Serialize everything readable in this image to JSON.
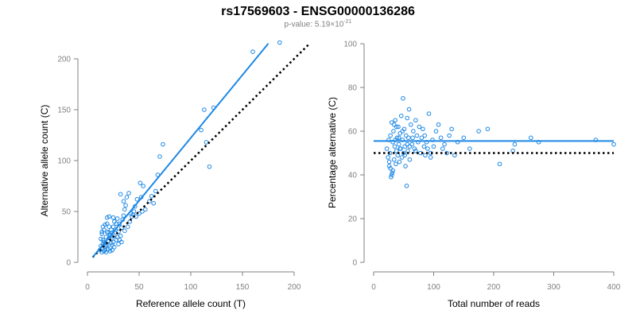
{
  "title": "rs17569603 - ENSG00000136286",
  "subtitle_prefix": "p-value: 5.19×10",
  "subtitle_exp": "-21",
  "colors": {
    "accent": "#1e88e5",
    "axis": "#808080",
    "reference": "#000000"
  },
  "chart_data": [
    {
      "type": "scatter",
      "xlabel": "Reference allele count (T)",
      "ylabel": "Alternative allele count (C)",
      "xlim": [
        0,
        200
      ],
      "ylim": [
        0,
        200
      ],
      "xticks": [
        0,
        50,
        100,
        150,
        200
      ],
      "yticks": [
        0,
        50,
        100,
        150,
        200
      ],
      "fit_line": {
        "x": [
          5,
          175
        ],
        "y": [
          5,
          215
        ]
      },
      "reference_line": {
        "x": [
          5,
          215
        ],
        "y": [
          5,
          215
        ]
      },
      "points": [
        [
          12,
          12
        ],
        [
          13,
          16
        ],
        [
          14,
          10
        ],
        [
          15,
          18
        ],
        [
          16,
          20
        ],
        [
          15,
          22
        ],
        [
          17,
          14
        ],
        [
          18,
          25
        ],
        [
          14,
          28
        ],
        [
          19,
          30
        ],
        [
          16,
          32
        ],
        [
          15,
          35
        ],
        [
          17,
          12
        ],
        [
          19,
          18
        ],
        [
          20,
          21
        ],
        [
          18,
          16
        ],
        [
          21,
          24
        ],
        [
          22,
          27
        ],
        [
          20,
          29
        ],
        [
          23,
          32
        ],
        [
          21,
          35
        ],
        [
          19,
          38
        ],
        [
          22,
          14
        ],
        [
          24,
          17
        ],
        [
          25,
          20
        ],
        [
          23,
          23
        ],
        [
          26,
          26
        ],
        [
          24,
          29
        ],
        [
          27,
          32
        ],
        [
          25,
          35
        ],
        [
          28,
          38
        ],
        [
          26,
          40
        ],
        [
          29,
          43
        ],
        [
          30,
          18
        ],
        [
          31,
          22
        ],
        [
          32,
          26
        ],
        [
          30,
          30
        ],
        [
          33,
          34
        ],
        [
          31,
          38
        ],
        [
          34,
          42
        ],
        [
          35,
          46
        ],
        [
          36,
          52
        ],
        [
          37,
          56
        ],
        [
          35,
          60
        ],
        [
          38,
          64
        ],
        [
          40,
          68
        ],
        [
          32,
          67
        ],
        [
          42,
          48
        ],
        [
          44,
          47
        ],
        [
          45,
          50
        ],
        [
          47,
          45
        ],
        [
          48,
          62
        ],
        [
          50,
          48
        ],
        [
          52,
          64
        ],
        [
          51,
          78
        ],
        [
          54,
          75
        ],
        [
          62,
          65
        ],
        [
          66,
          70
        ],
        [
          68,
          86
        ],
        [
          70,
          104
        ],
        [
          73,
          116
        ],
        [
          110,
          130
        ],
        [
          113,
          150
        ],
        [
          115,
          118
        ],
        [
          118,
          94
        ],
        [
          122,
          152
        ],
        [
          160,
          207
        ],
        [
          186,
          216
        ],
        [
          21,
          45
        ],
        [
          23,
          19
        ],
        [
          25,
          44
        ],
        [
          28,
          22
        ],
        [
          18,
          10
        ],
        [
          16,
          11
        ],
        [
          20,
          13
        ],
        [
          22,
          11
        ],
        [
          13,
          23
        ],
        [
          14,
          30
        ],
        [
          17,
          37
        ],
        [
          19,
          44
        ],
        [
          24,
          12
        ],
        [
          26,
          15
        ],
        [
          29,
          25
        ],
        [
          33,
          20
        ],
        [
          36,
          31
        ],
        [
          39,
          35
        ],
        [
          41,
          40
        ],
        [
          43,
          45
        ],
        [
          46,
          55
        ],
        [
          53,
          50
        ],
        [
          56,
          52
        ],
        [
          60,
          60
        ],
        [
          64,
          58
        ]
      ]
    },
    {
      "type": "scatter",
      "xlabel": "Total number of reads",
      "ylabel": "Percentage alternative (C)",
      "xlim": [
        0,
        400
      ],
      "ylim": [
        0,
        100
      ],
      "xticks": [
        0,
        100,
        200,
        300,
        400
      ],
      "yticks": [
        0,
        20,
        40,
        60,
        80,
        100
      ],
      "fit_line": {
        "x": [
          0,
          400
        ],
        "y": [
          55.5,
          55.5
        ]
      },
      "reference_line": {
        "x": [
          0,
          400
        ],
        "y": [
          50,
          50
        ]
      },
      "points": [
        [
          22,
          52
        ],
        [
          24,
          48
        ],
        [
          25,
          56
        ],
        [
          26,
          44
        ],
        [
          27,
          50
        ],
        [
          28,
          58
        ],
        [
          29,
          39
        ],
        [
          30,
          64
        ],
        [
          31,
          41
        ],
        [
          32,
          55
        ],
        [
          33,
          60
        ],
        [
          34,
          47
        ],
        [
          35,
          53
        ],
        [
          36,
          65
        ],
        [
          37,
          45
        ],
        [
          38,
          51
        ],
        [
          39,
          57
        ],
        [
          40,
          49
        ],
        [
          41,
          62
        ],
        [
          42,
          54
        ],
        [
          43,
          46
        ],
        [
          44,
          59
        ],
        [
          45,
          52
        ],
        [
          46,
          67
        ],
        [
          47,
          48
        ],
        [
          48,
          56
        ],
        [
          49,
          75
        ],
        [
          50,
          50
        ],
        [
          51,
          61
        ],
        [
          52,
          53
        ],
        [
          53,
          44
        ],
        [
          54,
          58
        ],
        [
          55,
          35
        ],
        [
          56,
          66
        ],
        [
          57,
          51
        ],
        [
          58,
          57
        ],
        [
          59,
          70
        ],
        [
          60,
          47
        ],
        [
          62,
          63
        ],
        [
          64,
          54
        ],
        [
          66,
          60
        ],
        [
          68,
          52
        ],
        [
          70,
          65
        ],
        [
          72,
          58
        ],
        [
          74,
          55
        ],
        [
          76,
          62
        ],
        [
          78,
          50
        ],
        [
          80,
          57
        ],
        [
          82,
          61
        ],
        [
          84,
          53
        ],
        [
          86,
          49
        ],
        [
          88,
          55
        ],
        [
          90,
          52
        ],
        [
          92,
          68
        ],
        [
          95,
          48
        ],
        [
          98,
          56
        ],
        [
          100,
          53
        ],
        [
          104,
          60
        ],
        [
          108,
          63
        ],
        [
          112,
          57
        ],
        [
          118,
          54
        ],
        [
          122,
          50
        ],
        [
          126,
          58
        ],
        [
          130,
          61
        ],
        [
          135,
          49
        ],
        [
          140,
          55
        ],
        [
          150,
          57
        ],
        [
          160,
          52
        ],
        [
          175,
          60
        ],
        [
          190,
          61
        ],
        [
          210,
          45
        ],
        [
          232,
          51
        ],
        [
          235,
          54
        ],
        [
          262,
          57
        ],
        [
          275,
          55
        ],
        [
          370,
          56
        ],
        [
          400,
          54
        ],
        [
          26,
          46
        ],
        [
          28,
          43
        ],
        [
          30,
          40
        ],
        [
          32,
          42
        ],
        [
          34,
          63
        ],
        [
          36,
          56
        ],
        [
          38,
          62
        ],
        [
          42,
          57
        ],
        [
          44,
          52
        ],
        [
          48,
          60
        ],
        [
          52,
          49
        ],
        [
          56,
          54
        ],
        [
          60,
          53
        ],
        [
          65,
          57
        ],
        [
          70,
          51
        ],
        [
          85,
          58
        ],
        [
          95,
          50
        ],
        [
          115,
          52
        ]
      ]
    }
  ]
}
